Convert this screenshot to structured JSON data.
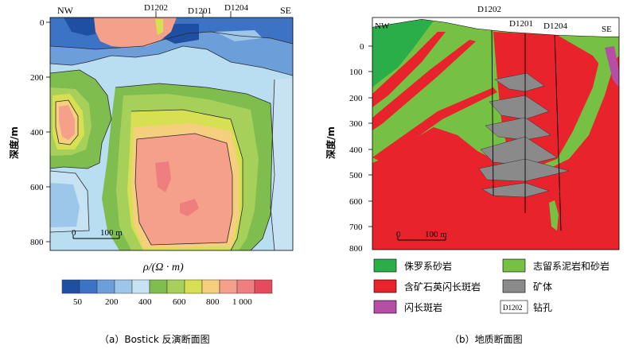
{
  "left_panel": {
    "corner_left": "NW",
    "corner_right": "SE",
    "boreholes": [
      "D1202",
      "D1201",
      "D1204"
    ],
    "depth_label": "深度/m",
    "depth_ticks": [
      "0",
      "200",
      "400",
      "600",
      "800"
    ],
    "scale_label": "0",
    "scale_value": "100 m",
    "resistivity_label": "ρ/(Ω · m)",
    "colorbar_ticks": [
      "50",
      "200",
      "400",
      "600",
      "800",
      "1 000"
    ],
    "colorbar_colors": [
      "#1f4fa0",
      "#3d73c4",
      "#6c9fd9",
      "#9cc6ea",
      "#c7e3f3",
      "#7ebd4e",
      "#a6d05a",
      "#d7e052",
      "#f6cf7e",
      "#f4a08a",
      "#ef7e7e",
      "#e64a5d"
    ],
    "caption": "（a）Bostick 反演断面图"
  },
  "right_panel": {
    "corner_left": "NW",
    "corner_right": "SE",
    "boreholes": [
      "D1202",
      "D1201",
      "D1204"
    ],
    "depth_label": "深度/m",
    "depth_ticks": [
      "0",
      "100",
      "200",
      "300",
      "400",
      "500",
      "600",
      "700",
      "800"
    ],
    "scale_label": "0",
    "scale_value": "100 m",
    "caption": "（b）地质断面图"
  },
  "legend": {
    "items": [
      {
        "label": "侏罗系砂岩",
        "color": "#2aae4a"
      },
      {
        "label": "志留系泥岩和砂岩",
        "color": "#76c043"
      },
      {
        "label": "含矿石英闪长斑岩",
        "color": "#e8232b"
      },
      {
        "label": "矿体",
        "color": "#8a8a8a"
      },
      {
        "label": "闪长斑岩",
        "color": "#b54fa5"
      },
      {
        "label": "钻孔",
        "box": "D1202"
      }
    ]
  }
}
